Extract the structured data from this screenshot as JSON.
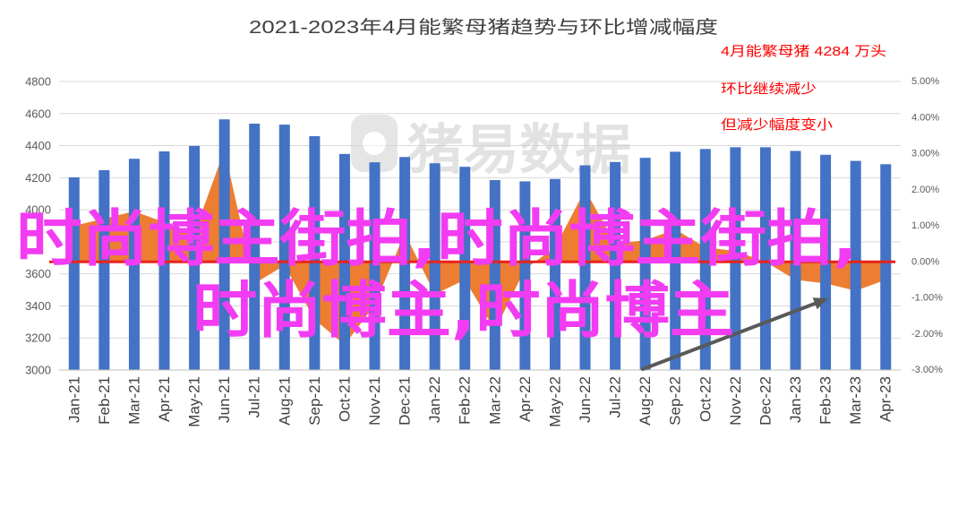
{
  "chart_data": {
    "type": "bar",
    "title": "2021-2023年4月能繁母猪趋势与环比增减幅度",
    "categories": [
      "Jan-21",
      "Feb-21",
      "Mar-21",
      "Apr-21",
      "May-21",
      "Jun-21",
      "Jul-21",
      "Aug-21",
      "Sep-21",
      "Oct-21",
      "Nov-21",
      "Dec-21",
      "Jan-22",
      "Feb-22",
      "Mar-22",
      "Apr-22",
      "May-22",
      "Jun-22",
      "Jul-22",
      "Aug-22",
      "Sep-22",
      "Oct-22",
      "Nov-22",
      "Dec-22",
      "Jan-23",
      "Feb-23",
      "Mar-23",
      "Apr-23"
    ],
    "series": [
      {
        "type": "bar",
        "axis": "left",
        "color": "#4472C4",
        "values": [
          4202,
          4247,
          4318,
          4364,
          4398,
          4564,
          4537,
          4531,
          4459,
          4348,
          4296,
          4329,
          4290,
          4268,
          4185,
          4177,
          4192,
          4277,
          4298,
          4324,
          4362,
          4379,
          4390,
          4390,
          4367,
          4343,
          4305,
          4284
        ]
      },
      {
        "type": "area",
        "axis": "right",
        "color": "#ED7D31",
        "values": [
          1.0,
          1.2,
          1.4,
          1.1,
          0.8,
          3.1,
          -0.6,
          -0.1,
          -1.6,
          -2.3,
          -1.2,
          0.8,
          -0.9,
          -0.5,
          -1.9,
          -0.2,
          0.4,
          2.0,
          0.5,
          0.6,
          0.9,
          0.4,
          0.3,
          0.0,
          -0.5,
          -0.6,
          -0.8,
          -0.5
        ]
      }
    ],
    "y_left": {
      "min": 3000,
      "max": 4800,
      "step": 200,
      "tick_labels": [
        {
          "value": 4800,
          "label": "4800"
        },
        {
          "value": 4600,
          "label": "4600"
        },
        {
          "value": 4400,
          "label": "4400"
        },
        {
          "value": 4200,
          "label": "4200"
        },
        {
          "value": 4000,
          "label": "4000"
        },
        {
          "value": 3600,
          "label": "3600"
        },
        {
          "value": 3400,
          "label": "3400"
        },
        {
          "value": 3200,
          "label": "3200"
        },
        {
          "value": 3000,
          "label": "3000"
        }
      ]
    },
    "y_right": {
      "min": -3,
      "max": 5,
      "tick_labels": [
        {
          "value": 5,
          "label": "5.00%"
        },
        {
          "value": 4,
          "label": "4.00%"
        },
        {
          "value": 3,
          "label": "3.00%"
        },
        {
          "value": 2,
          "label": "2.00%"
        },
        {
          "value": 1,
          "label": "1.00%"
        },
        {
          "value": 0,
          "label": "0.00%"
        },
        {
          "value": -1,
          "label": "-1.00%"
        },
        {
          "value": -2,
          "label": "-2.00%"
        },
        {
          "value": -3,
          "label": "-3.00%"
        }
      ]
    },
    "grid": true,
    "legend": "none",
    "reference_line": {
      "axis": "right",
      "value": 0,
      "color": "#E8231C"
    },
    "annotations": [
      {
        "text": "4月能繁母猪 4284 万头"
      },
      {
        "text": "环比继续减少"
      },
      {
        "text": "但减少幅度变小"
      }
    ],
    "annotation_color": "#FF0000"
  },
  "watermark_text": "猪易数据",
  "overlay_text": {
    "line1": "时尚博主街拍,时尚博主街拍,",
    "line2": "时尚博主,时尚博主",
    "color": "#F23CF2"
  }
}
